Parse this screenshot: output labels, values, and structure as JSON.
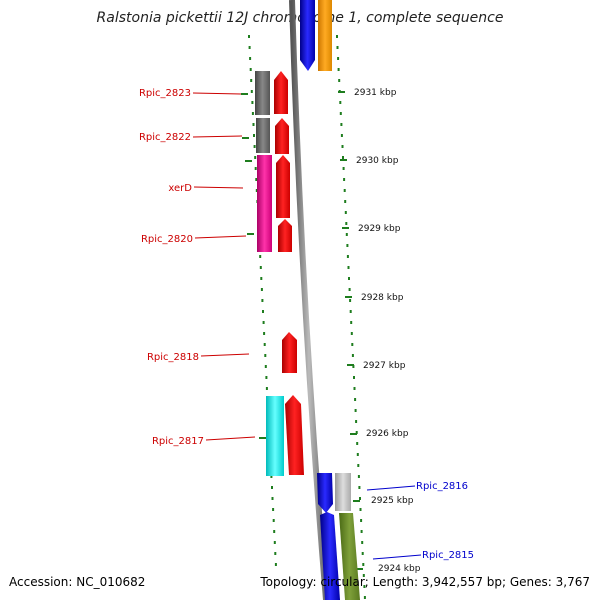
{
  "title": "Ralstonia pickettii 12J chromosome 1, complete sequence",
  "footer": {
    "accession": "Accession: NC_010682",
    "summary": "Topology: circular; Length: 3,942,557 bp; Genes: 3,767"
  },
  "colors": {
    "backbone": "#888888",
    "track_dots": "#1e7d1e",
    "label_red": "#cc0000",
    "label_blue": "#0000cc"
  },
  "ticks": [
    "2931 kbp",
    "2930 kbp",
    "2929 kbp",
    "2928 kbp",
    "2927 kbp",
    "2926 kbp",
    "2925 kbp",
    "2924 kbp"
  ],
  "gene_labels": [
    {
      "name": "Rpic_2823",
      "color": "red"
    },
    {
      "name": "Rpic_2822",
      "color": "red"
    },
    {
      "name": "xerD",
      "color": "red"
    },
    {
      "name": "Rpic_2820",
      "color": "red"
    },
    {
      "name": "Rpic_2818",
      "color": "red"
    },
    {
      "name": "Rpic_2817",
      "color": "red"
    },
    {
      "name": "Rpic_2816",
      "color": "blue"
    },
    {
      "name": "Rpic_2815",
      "color": "blue"
    }
  ],
  "features": [
    {
      "name": "top-blue-gene",
      "color": "#0000ee"
    },
    {
      "name": "top-orange-gene",
      "color": "#ff9900"
    },
    {
      "name": "rpic-2823-grey-block",
      "color": "#666666"
    },
    {
      "name": "rpic-2823-red-arrow",
      "color": "#ee0000"
    },
    {
      "name": "rpic-2822-grey-block",
      "color": "#666666"
    },
    {
      "name": "rpic-2822-red-arrow",
      "color": "#ee0000"
    },
    {
      "name": "magenta-block",
      "color": "#ee1199"
    },
    {
      "name": "xerd-red-arrow",
      "color": "#ee0000"
    },
    {
      "name": "rpic-2820-red-arrow",
      "color": "#ee0000"
    },
    {
      "name": "rpic-2818-red-arrow",
      "color": "#ee0000"
    },
    {
      "name": "cyan-block",
      "color": "#00eeee"
    },
    {
      "name": "rpic-2817-red-arrow",
      "color": "#ee0000"
    },
    {
      "name": "rpic-2816-blue-arrow",
      "color": "#0000ee"
    },
    {
      "name": "rpic-2816-grey-block",
      "color": "#bbbbbb"
    },
    {
      "name": "rpic-2815-blue-block",
      "color": "#0000ee"
    },
    {
      "name": "rpic-2815-olive-block",
      "color": "#6b8e23"
    }
  ]
}
